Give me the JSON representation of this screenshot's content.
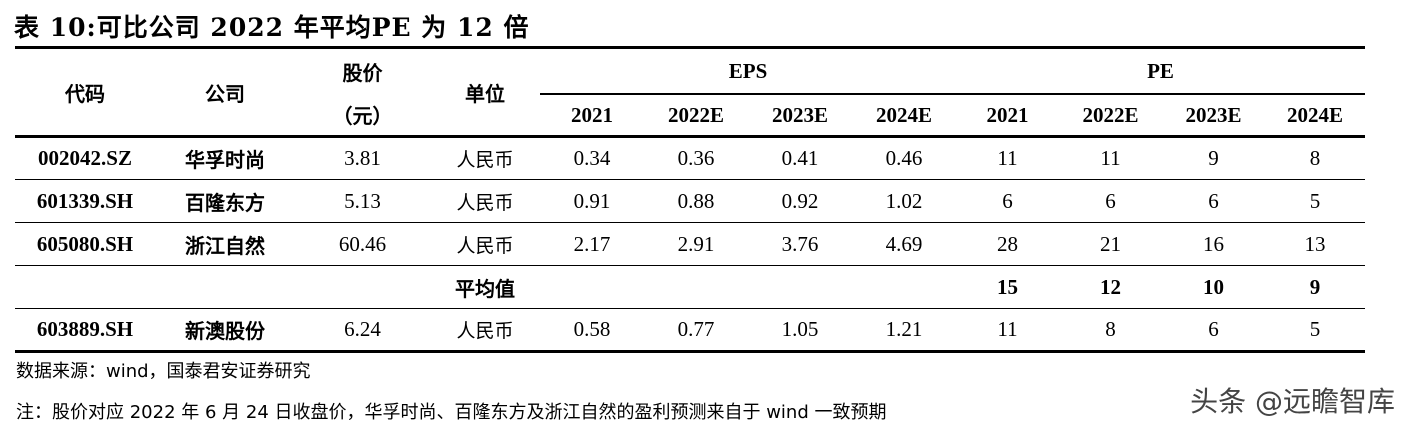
{
  "title": "表 10:可比公司 2022 年平均PE 为 12 倍",
  "headers": {
    "code": "代码",
    "company": "公司",
    "price_line1": "股价",
    "price_line2": "（元）",
    "unit": "单位",
    "eps": "EPS",
    "pe": "PE",
    "years": [
      "2021",
      "2022E",
      "2023E",
      "2024E"
    ]
  },
  "rows": [
    {
      "code": "002042.SZ",
      "company": "华孚时尚",
      "price": "3.81",
      "unit": "人民币",
      "eps": [
        "0.34",
        "0.36",
        "0.41",
        "0.46"
      ],
      "pe": [
        "11",
        "11",
        "9",
        "8"
      ]
    },
    {
      "code": "601339.SH",
      "company": "百隆东方",
      "price": "5.13",
      "unit": "人民币",
      "eps": [
        "0.91",
        "0.88",
        "0.92",
        "1.02"
      ],
      "pe": [
        "6",
        "6",
        "6",
        "5"
      ]
    },
    {
      "code": "605080.SH",
      "company": "浙江自然",
      "price": "60.46",
      "unit": "人民币",
      "eps": [
        "2.17",
        "2.91",
        "3.76",
        "4.69"
      ],
      "pe": [
        "28",
        "21",
        "16",
        "13"
      ]
    }
  ],
  "average": {
    "label": "平均值",
    "pe": [
      "15",
      "12",
      "10",
      "9"
    ]
  },
  "target": {
    "code": "603889.SH",
    "company": "新澳股份",
    "price": "6.24",
    "unit": "人民币",
    "eps": [
      "0.58",
      "0.77",
      "1.05",
      "1.21"
    ],
    "pe": [
      "11",
      "8",
      "6",
      "5"
    ]
  },
  "source": "数据来源：wind，国泰君安证券研究",
  "note": "注：股价对应 2022 年 6 月 24 日收盘价，华孚时尚、百隆东方及浙江自然的盈利预测来自于 wind 一致预期",
  "watermark": "头条 @远瞻智库"
}
